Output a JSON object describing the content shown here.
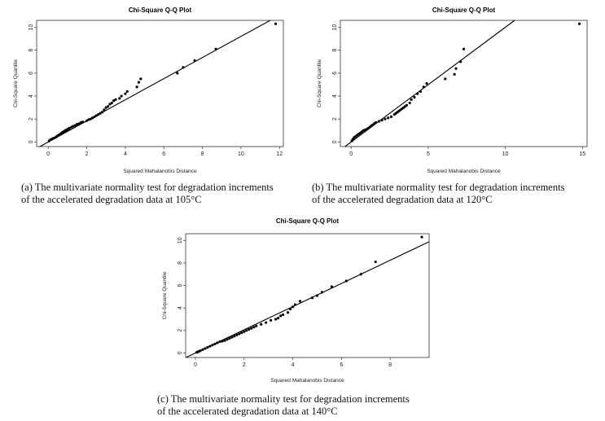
{
  "chart_data": [
    {
      "type": "scatter",
      "title": "Chi-Square Q-Q Plot",
      "xlabel": "Squared Mahalanobis Distance",
      "ylabel": "Chi-Square Quantile",
      "xlim": [
        -0.6,
        12.2
      ],
      "ylim": [
        -0.4,
        10.6
      ],
      "xticks": [
        0,
        2,
        4,
        6,
        8,
        10,
        12
      ],
      "yticks": [
        0,
        2,
        4,
        6,
        8,
        10
      ],
      "reference_line": {
        "intercept": 0,
        "slope": 0.92
      },
      "series": [
        {
          "x": [
            0.05,
            0.12,
            0.18,
            0.25,
            0.3,
            0.38,
            0.45,
            0.5,
            0.55,
            0.6,
            0.65,
            0.7,
            0.75,
            0.8,
            0.85,
            0.9,
            0.95,
            1.0,
            1.05,
            1.1,
            1.2,
            1.3,
            1.4,
            1.5,
            1.6,
            1.7,
            1.8,
            2.0,
            2.1,
            2.2,
            2.3,
            2.4,
            2.5,
            2.6,
            2.7,
            2.8,
            2.9,
            3.0,
            3.1,
            3.2,
            3.3,
            3.4,
            3.5,
            3.7,
            3.8,
            4.0,
            4.1,
            4.6,
            4.7,
            4.8,
            6.7,
            7.0,
            7.6,
            8.7,
            11.8
          ],
          "y": [
            0.1,
            0.2,
            0.25,
            0.3,
            0.35,
            0.4,
            0.5,
            0.55,
            0.6,
            0.65,
            0.72,
            0.78,
            0.85,
            0.9,
            0.95,
            1.0,
            1.05,
            1.1,
            1.15,
            1.2,
            1.3,
            1.38,
            1.45,
            1.55,
            1.6,
            1.7,
            1.75,
            1.85,
            1.95,
            2.0,
            2.1,
            2.2,
            2.3,
            2.4,
            2.5,
            2.6,
            2.8,
            3.0,
            3.1,
            3.3,
            3.4,
            3.6,
            3.7,
            3.8,
            4.0,
            4.2,
            4.4,
            4.8,
            5.2,
            5.5,
            6.0,
            6.5,
            7.1,
            8.1,
            10.3
          ]
        }
      ],
      "grid": false
    },
    {
      "type": "scatter",
      "title": "Chi-Square Q-Q Plot",
      "xlabel": "Squared Mahalanobis Distance",
      "ylabel": "Chi-Square Quantile",
      "xlim": [
        -0.7,
        15.3
      ],
      "ylim": [
        -0.4,
        10.6
      ],
      "xticks": [
        0,
        5,
        10,
        15
      ],
      "yticks": [
        0,
        2,
        4,
        6,
        8,
        10
      ],
      "reference_line": {
        "intercept": 0,
        "slope": 1.0
      },
      "series": [
        {
          "x": [
            0.05,
            0.1,
            0.15,
            0.2,
            0.3,
            0.4,
            0.5,
            0.6,
            0.7,
            0.8,
            0.9,
            1.0,
            1.1,
            1.2,
            1.3,
            1.4,
            1.5,
            1.6,
            1.8,
            2.0,
            2.2,
            2.4,
            2.6,
            2.8,
            2.9,
            3.0,
            3.1,
            3.2,
            3.3,
            3.4,
            3.5,
            3.6,
            3.8,
            3.9,
            4.1,
            4.3,
            4.5,
            4.7,
            4.9,
            6.1,
            6.7,
            6.8,
            7.1,
            7.3,
            14.8
          ],
          "y": [
            0.1,
            0.2,
            0.3,
            0.4,
            0.5,
            0.6,
            0.7,
            0.8,
            0.9,
            1.0,
            1.05,
            1.1,
            1.2,
            1.3,
            1.4,
            1.5,
            1.6,
            1.7,
            1.8,
            1.9,
            2.0,
            2.1,
            2.2,
            2.4,
            2.5,
            2.6,
            2.7,
            2.8,
            2.9,
            3.0,
            3.1,
            3.2,
            3.4,
            3.7,
            3.9,
            4.2,
            4.4,
            4.8,
            5.1,
            5.5,
            5.9,
            6.4,
            7.0,
            8.1,
            10.3
          ]
        }
      ],
      "grid": false
    },
    {
      "type": "scatter",
      "title": "Chi-Square Q-Q Plot",
      "xlabel": "Squared Mahalanobis Distance",
      "ylabel": "Chi-Square Quantile",
      "xlim": [
        -0.4,
        9.6
      ],
      "ylim": [
        -0.4,
        10.6
      ],
      "xticks": [
        0,
        2,
        4,
        6,
        8
      ],
      "yticks": [
        0,
        2,
        4,
        6,
        8,
        10
      ],
      "reference_line": {
        "intercept": 0,
        "slope": 1.03
      },
      "series": [
        {
          "x": [
            0.05,
            0.1,
            0.15,
            0.2,
            0.3,
            0.4,
            0.5,
            0.6,
            0.7,
            0.8,
            0.9,
            1.0,
            1.1,
            1.2,
            1.3,
            1.4,
            1.5,
            1.6,
            1.7,
            1.8,
            1.9,
            2.0,
            2.1,
            2.2,
            2.3,
            2.4,
            2.5,
            2.7,
            2.9,
            3.1,
            3.3,
            3.4,
            3.5,
            3.6,
            3.8,
            3.9,
            4.0,
            4.1,
            4.3,
            4.8,
            5.0,
            5.2,
            5.6,
            6.2,
            6.8,
            7.4,
            9.3
          ],
          "y": [
            0.05,
            0.1,
            0.15,
            0.2,
            0.3,
            0.4,
            0.5,
            0.6,
            0.7,
            0.8,
            0.9,
            1.0,
            1.05,
            1.1,
            1.2,
            1.3,
            1.4,
            1.5,
            1.6,
            1.7,
            1.8,
            1.9,
            2.0,
            2.1,
            2.2,
            2.3,
            2.4,
            2.55,
            2.7,
            2.9,
            3.0,
            3.1,
            3.3,
            3.4,
            3.6,
            3.9,
            4.1,
            4.3,
            4.6,
            4.9,
            5.1,
            5.4,
            5.9,
            6.4,
            7.0,
            8.1,
            10.3
          ]
        }
      ],
      "grid": false
    }
  ],
  "captions": [
    {
      "line1": "(a) The multivariate normality test for degradation increments",
      "line2": "of the accelerated degradation data at 105°C"
    },
    {
      "line1": "(b) The multivariate normality test for degradation increments",
      "line2": "of the accelerated degradation data at 120°C"
    },
    {
      "line1": "(c) The multivariate normality test for degradation increments",
      "line2": "of the accelerated degradation data at 140°C"
    }
  ]
}
